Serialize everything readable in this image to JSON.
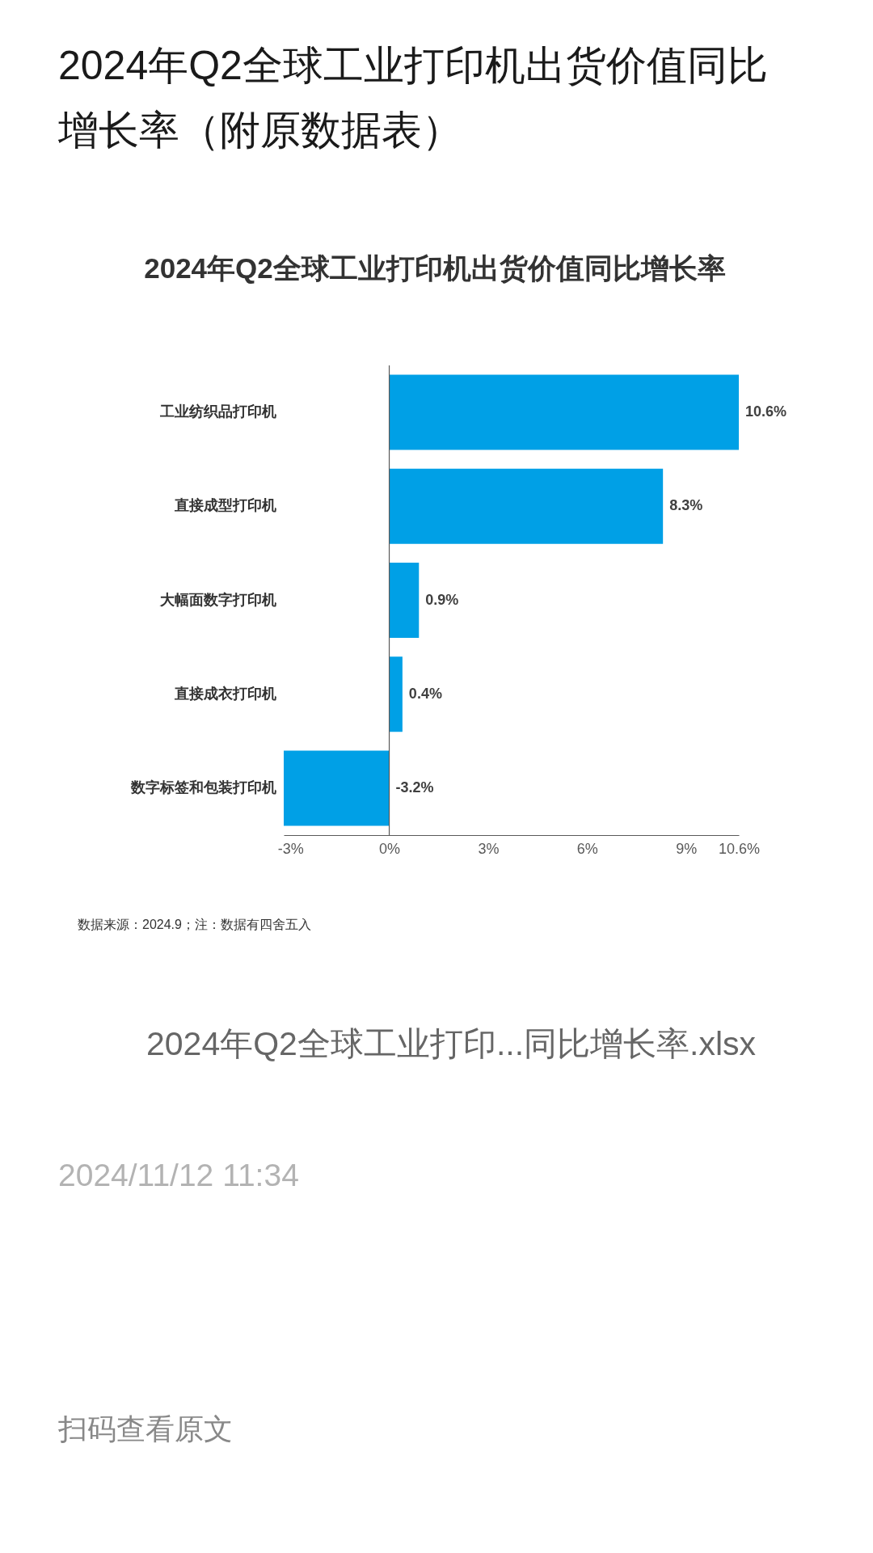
{
  "chart_data": {
    "type": "bar",
    "orientation": "horizontal",
    "title": "2024年Q2全球工业打印机出货价值同比增长率（附原数据表）",
    "subtitle": "2024年Q2全球工业打印机出货价值同比增长率",
    "categories": [
      "工业纺织品打印机",
      "直接成型打印机",
      "大幅面数字打印机",
      "直接成衣打印机",
      "数字标签和包装打印机"
    ],
    "values": [
      10.6,
      8.3,
      0.9,
      0.4,
      -3.2
    ],
    "value_labels": [
      "10.6%",
      "8.3%",
      "0.9%",
      "0.4%",
      "-3.2%"
    ],
    "color": "#00a0e6",
    "xlim": [
      -3.2,
      10.6
    ],
    "xticks": [
      {
        "value": -3,
        "label": "-3%"
      },
      {
        "value": 0,
        "label": "0%"
      },
      {
        "value": 3,
        "label": "3%"
      },
      {
        "value": 6,
        "label": "6%"
      },
      {
        "value": 9,
        "label": "9%"
      },
      {
        "value": 10.6,
        "label": "10.6%"
      }
    ],
    "ref_lines": [
      {
        "axis": "x",
        "value": 0,
        "color": "#595959"
      }
    ],
    "annotations": [
      "数据来源：2024.9；注：数据有四舍五入",
      "2024年Q2全球工业打印...同比增长率.xlsx",
      "2024/11/12 11:34",
      "扫码查看原文"
    ]
  }
}
